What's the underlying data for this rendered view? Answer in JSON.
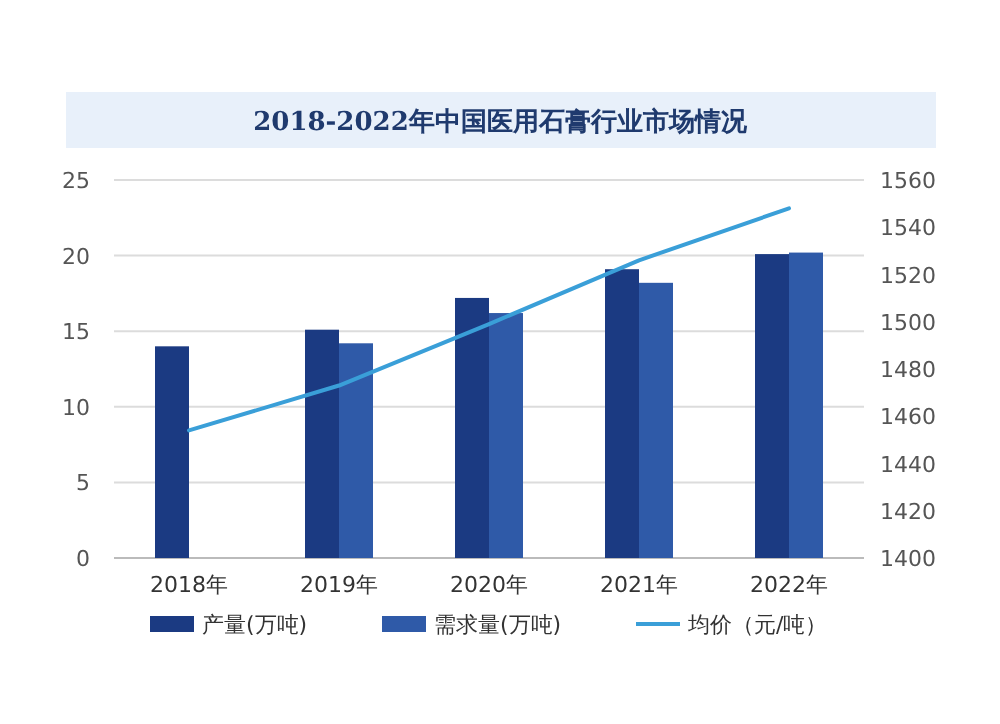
{
  "chart_data": {
    "type": "bar",
    "title": "2018-2022年中国医用石膏行业市场情况",
    "categories": [
      "2018年",
      "2019年",
      "2020年",
      "2021年",
      "2022年"
    ],
    "series": [
      {
        "name": "产量(万吨)",
        "color": "#1b3a82",
        "values": [
          14.0,
          15.1,
          17.2,
          19.1,
          20.1
        ]
      },
      {
        "name": "需求量(万吨)",
        "color": "#2f5aa8",
        "values": [
          null,
          14.2,
          16.2,
          18.2,
          20.2
        ]
      },
      {
        "name": "均价（元/吨）",
        "type": "line",
        "axis": "y2",
        "color": "#3a9fd8",
        "values": [
          1454,
          1473,
          1499,
          1526,
          1548
        ]
      }
    ],
    "ylim": [
      0,
      25
    ],
    "yticks": [
      0,
      5,
      10,
      15,
      20,
      25
    ],
    "y2lim": [
      1400,
      1560
    ],
    "y2ticks": [
      1400,
      1420,
      1440,
      1460,
      1480,
      1500,
      1520,
      1540,
      1560
    ],
    "grid": "y",
    "legend": "bottom"
  }
}
